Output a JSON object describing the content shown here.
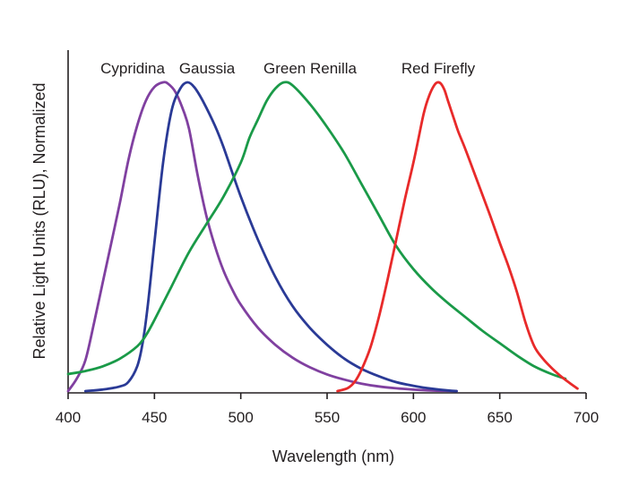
{
  "chart_data": {
    "type": "line",
    "title": "",
    "xlabel": "Wavelength (nm)",
    "ylabel": "Relative Light Units (RLU), Normalized",
    "xlim": [
      400,
      700
    ],
    "ylim": [
      0,
      1
    ],
    "xticks": [
      400,
      450,
      500,
      550,
      600,
      650,
      700
    ],
    "grid": false,
    "legend": "inline labels above peaks",
    "series": [
      {
        "name": "Cypridina",
        "color": "#8040a0",
        "x": [
          400,
          405,
          410,
          415,
          420,
          425,
          430,
          435,
          440,
          445,
          450,
          455,
          458,
          462,
          466,
          470,
          475,
          480,
          485,
          490,
          495,
          500,
          510,
          520,
          530,
          540,
          550,
          560,
          570,
          580,
          590,
          600,
          610,
          620,
          625
        ],
        "y": [
          0.0,
          0.04,
          0.1,
          0.22,
          0.35,
          0.48,
          0.61,
          0.75,
          0.86,
          0.94,
          0.985,
          1.0,
          0.995,
          0.97,
          0.92,
          0.85,
          0.7,
          0.57,
          0.47,
          0.39,
          0.33,
          0.28,
          0.205,
          0.15,
          0.108,
          0.077,
          0.054,
          0.037,
          0.024,
          0.015,
          0.009,
          0.005,
          0.002,
          0.0005,
          0.0
        ]
      },
      {
        "name": "Gaussia",
        "color": "#2a3a96",
        "x": [
          410,
          420,
          430,
          435,
          440,
          443,
          446,
          450,
          455,
          460,
          465,
          469,
          473,
          478,
          485,
          490,
          500,
          510,
          520,
          530,
          540,
          550,
          560,
          570,
          580,
          590,
          600,
          610,
          620,
          625
        ],
        "y": [
          0.0,
          0.005,
          0.015,
          0.03,
          0.08,
          0.15,
          0.27,
          0.48,
          0.74,
          0.91,
          0.98,
          1.0,
          0.985,
          0.94,
          0.86,
          0.79,
          0.63,
          0.49,
          0.37,
          0.275,
          0.205,
          0.15,
          0.105,
          0.072,
          0.048,
          0.029,
          0.017,
          0.008,
          0.002,
          0.0
        ]
      },
      {
        "name": "Green Renilla",
        "color": "#1a9a48",
        "x": [
          400,
          410,
          420,
          430,
          440,
          445,
          450,
          460,
          470,
          480,
          490,
          500,
          505,
          510,
          515,
          520,
          525,
          530,
          540,
          550,
          560,
          570,
          580,
          590,
          600,
          610,
          620,
          630,
          640,
          650,
          660,
          670,
          680,
          688
        ],
        "y": [
          0.055,
          0.065,
          0.08,
          0.105,
          0.145,
          0.18,
          0.23,
          0.34,
          0.45,
          0.54,
          0.63,
          0.74,
          0.82,
          0.88,
          0.94,
          0.98,
          1.0,
          0.99,
          0.93,
          0.855,
          0.77,
          0.67,
          0.57,
          0.47,
          0.395,
          0.335,
          0.285,
          0.24,
          0.195,
          0.155,
          0.115,
          0.08,
          0.055,
          0.04
        ]
      },
      {
        "name": "Red Firefly",
        "color": "#e82a2a",
        "x": [
          556,
          562,
          566,
          570,
          575,
          580,
          585,
          590,
          595,
          600,
          603,
          606,
          609,
          612,
          614,
          616,
          618,
          620,
          623,
          626,
          630,
          635,
          640,
          645,
          650,
          655,
          660,
          665,
          670,
          675,
          680,
          685,
          690,
          695
        ],
        "y": [
          0.0,
          0.01,
          0.03,
          0.07,
          0.14,
          0.24,
          0.36,
          0.49,
          0.62,
          0.74,
          0.82,
          0.9,
          0.955,
          0.99,
          1.0,
          0.995,
          0.975,
          0.94,
          0.89,
          0.84,
          0.785,
          0.71,
          0.635,
          0.56,
          0.48,
          0.405,
          0.32,
          0.22,
          0.145,
          0.105,
          0.075,
          0.05,
          0.028,
          0.008
        ]
      }
    ]
  }
}
